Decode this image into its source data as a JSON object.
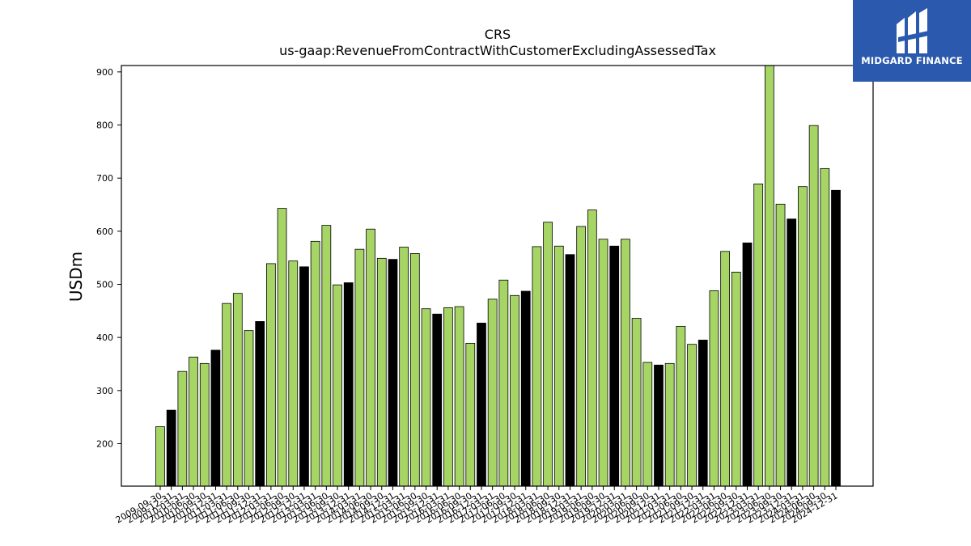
{
  "logo": {
    "text": "MIDGARD FINANCE"
  },
  "chart_data": {
    "type": "bar",
    "title": "CRS",
    "subtitle": "us-gaap:RevenueFromContractWithCustomerExcludingAssessedTax",
    "ylabel": "USDm",
    "ylim": [
      120,
      912
    ],
    "yticks": [
      200,
      300,
      400,
      500,
      600,
      700,
      800,
      900
    ],
    "colors": {
      "quarter": "#a6d565",
      "annual": "#000000",
      "edge": "#000000"
    },
    "categories": [
      "2009-09-30",
      "2009-12-31",
      "2010-03-31",
      "2010-06-30",
      "2010-09-30",
      "2010-12-31",
      "2011-03-31",
      "2011-06-30",
      "2011-09-30",
      "2011-12-31",
      "2012-03-31",
      "2012-06-30",
      "2012-09-30",
      "2012-12-31",
      "2013-03-31",
      "2013-06-30",
      "2013-09-30",
      "2013-12-31",
      "2014-03-31",
      "2014-06-30",
      "2014-09-30",
      "2014-12-31",
      "2015-03-31",
      "2015-06-30",
      "2015-09-30",
      "2015-12-31",
      "2016-03-31",
      "2016-06-30",
      "2016-09-30",
      "2016-12-31",
      "2017-03-31",
      "2017-06-30",
      "2017-09-30",
      "2017-12-31",
      "2018-03-31",
      "2018-06-30",
      "2018-09-30",
      "2018-12-31",
      "2019-03-31",
      "2019-06-30",
      "2019-09-30",
      "2019-12-31",
      "2020-03-31",
      "2020-06-30",
      "2020-09-30",
      "2020-12-31",
      "2021-03-31",
      "2021-06-30",
      "2021-09-30",
      "2021-12-31",
      "2022-03-31",
      "2022-06-30",
      "2022-09-30",
      "2022-12-31",
      "2023-03-31",
      "2023-06-30",
      "2023-09-30",
      "2023-12-31",
      "2024-03-31",
      "2024-06-30",
      "2024-09-30",
      "2024-12-31"
    ],
    "values": [
      232,
      263,
      336,
      363,
      351,
      376,
      464,
      483,
      413,
      430,
      539,
      643,
      544,
      533,
      581,
      611,
      499,
      503,
      566,
      604,
      549,
      547,
      570,
      558,
      454,
      444,
      456,
      458,
      389,
      427,
      472,
      508,
      479,
      487,
      571,
      617,
      572,
      556,
      609,
      640,
      585,
      572,
      585,
      436,
      353,
      348,
      351,
      421,
      387,
      395,
      488,
      562,
      523,
      578,
      689,
      912,
      651,
      623,
      684,
      799,
      718,
      677
    ],
    "kinds": [
      "q",
      "a",
      "q",
      "q",
      "q",
      "a",
      "q",
      "q",
      "q",
      "a",
      "q",
      "q",
      "q",
      "a",
      "q",
      "q",
      "q",
      "a",
      "q",
      "q",
      "q",
      "a",
      "q",
      "q",
      "q",
      "a",
      "q",
      "q",
      "q",
      "a",
      "q",
      "q",
      "q",
      "a",
      "q",
      "q",
      "q",
      "a",
      "q",
      "q",
      "q",
      "a",
      "q",
      "q",
      "q",
      "a",
      "q",
      "q",
      "q",
      "a",
      "q",
      "q",
      "q",
      "a",
      "q",
      "q",
      "q",
      "a",
      "q",
      "q",
      "q",
      "a"
    ]
  }
}
